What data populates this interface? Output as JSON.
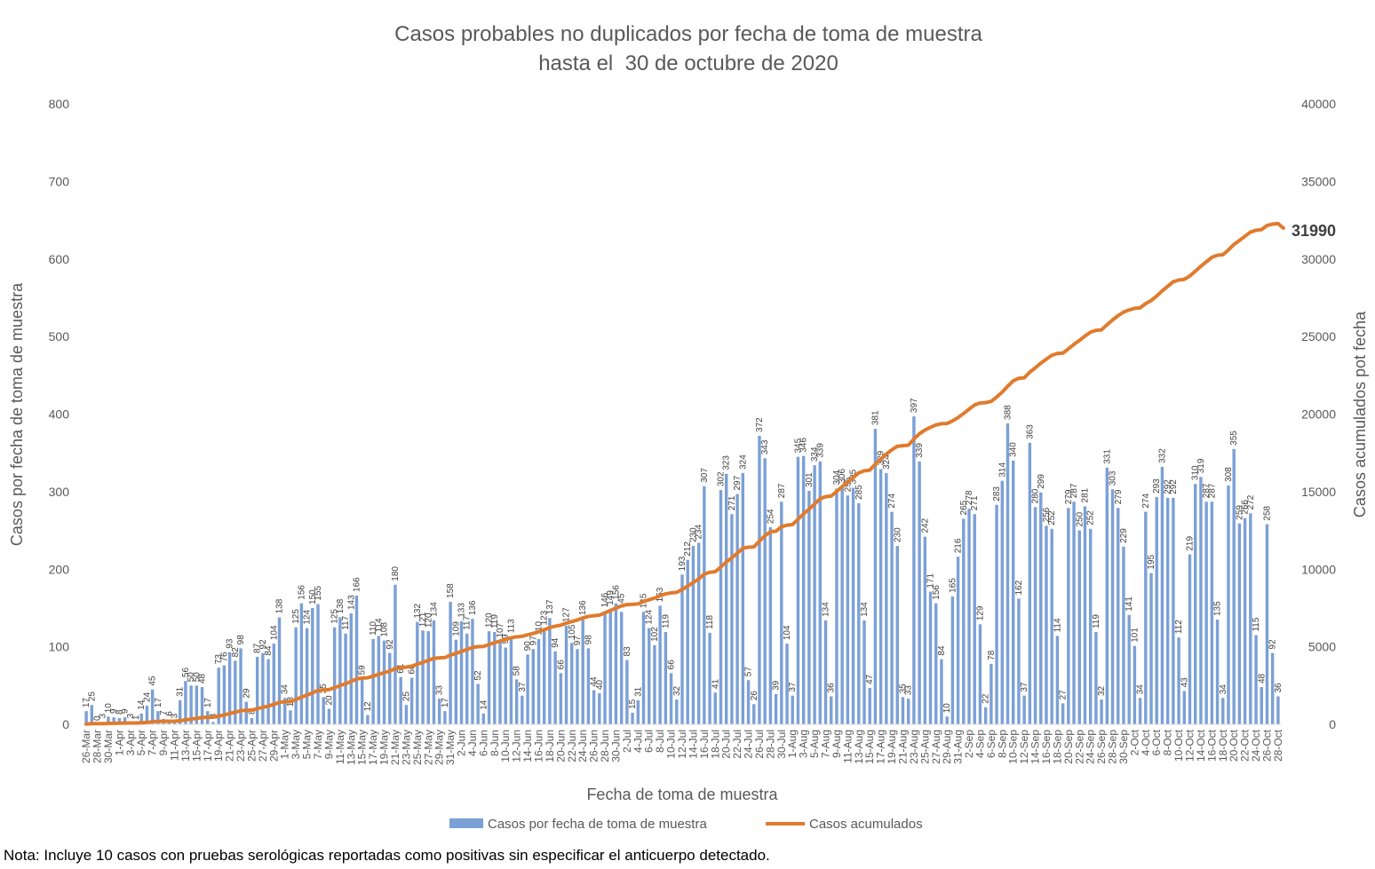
{
  "chart_data": {
    "type": "bar+line",
    "title": "Casos probables no duplicados por fecha de toma de muestra",
    "subtitle": "hasta el  30 de octubre de 2020",
    "xlabel": "Fecha de toma de muestra",
    "ylabel_left": "Casos por fecha de toma de muestra",
    "ylabel_right": "Casos acumulados pot fecha",
    "ylim_left": [
      0,
      800
    ],
    "ylim_right": [
      0,
      40000
    ],
    "yticks_left": [
      0,
      100,
      200,
      300,
      400,
      500,
      600,
      700,
      800
    ],
    "yticks_right": [
      0,
      5000,
      10000,
      15000,
      20000,
      25000,
      30000,
      35000,
      40000
    ],
    "start_date": "26-Mar",
    "x_tick_labels": [
      "26-Mar",
      "28-Mar",
      "30-Mar",
      "1-Apr",
      "3-Apr",
      "5-Apr",
      "7-Apr",
      "9-Apr",
      "11-Apr",
      "13-Apr",
      "15-Apr",
      "17-Apr",
      "19-Apr",
      "21-Apr",
      "23-Apr",
      "25-Apr",
      "27-Apr",
      "29-Apr",
      "1-May",
      "3-May",
      "5-May",
      "7-May",
      "9-May",
      "11-May",
      "13-May",
      "15-May",
      "17-May",
      "19-May",
      "21-May",
      "23-May",
      "25-May",
      "27-May",
      "29-May",
      "31-May",
      "2-Jun",
      "4-Jun",
      "6-Jun",
      "8-Jun",
      "10-Jun",
      "12-Jun",
      "14-Jun",
      "16-Jun",
      "18-Jun",
      "20-Jun",
      "22-Jun",
      "24-Jun",
      "26-Jun",
      "28-Jun",
      "30-Jun",
      "2-Jul",
      "4-Jul",
      "6-Jul",
      "8-Jul",
      "10-Jul",
      "12-Jul",
      "14-Jul",
      "16-Jul",
      "18-Jul",
      "20-Jul",
      "22-Jul",
      "24-Jul",
      "26-Jul",
      "28-Jul",
      "30-Jul",
      "1-Aug",
      "3-Aug",
      "5-Aug",
      "7-Aug",
      "9-Aug",
      "11-Aug",
      "13-Aug",
      "15-Aug",
      "17-Aug",
      "19-Aug",
      "21-Aug",
      "23-Aug",
      "25-Aug",
      "27-Aug",
      "29-Aug",
      "31-Aug",
      "2-Sep",
      "4-Sep",
      "6-Sep",
      "8-Sep",
      "10-Sep",
      "12-Sep",
      "14-Sep",
      "16-Sep",
      "18-Sep",
      "20-Sep",
      "22-Sep",
      "24-Sep",
      "26-Sep",
      "28-Sep",
      "30-Sep",
      "2-Oct",
      "4-Oct",
      "6-Oct",
      "8-Oct",
      "10-Oct",
      "12-Oct",
      "14-Oct",
      "16-Oct",
      "18-Oct",
      "20-Oct",
      "22-Oct",
      "24-Oct",
      "26-Oct",
      "28-Oct"
    ],
    "series": [
      {
        "name": "Casos por fecha de toma de muestra",
        "type": "bar",
        "color": "#7ba0d6",
        "values": [
          17,
          25,
          0,
          3,
          10,
          9,
          8,
          9,
          3,
          1,
          14,
          24,
          45,
          17,
          7,
          6,
          3,
          31,
          56,
          50,
          50,
          48,
          17,
          3,
          73,
          76,
          93,
          82,
          98,
          29,
          8,
          87,
          92,
          84,
          104,
          138,
          34,
          18,
          125,
          156,
          124,
          150,
          155,
          35,
          20,
          125,
          138,
          117,
          143,
          166,
          59,
          12,
          110,
          114,
          108,
          92,
          180,
          61,
          25,
          60,
          132,
          121,
          120,
          134,
          33,
          17,
          158,
          109,
          133,
          117,
          136,
          52,
          14,
          120,
          119,
          107,
          99,
          113,
          58,
          37,
          90,
          97,
          110,
          123,
          137,
          94,
          66,
          127,
          105,
          97,
          136,
          98,
          44,
          40,
          146,
          149,
          156,
          145,
          83,
          15,
          31,
          145,
          124,
          102,
          153,
          119,
          66,
          32,
          193,
          212,
          230,
          234,
          307,
          118,
          41,
          302,
          323,
          271,
          297,
          324,
          57,
          26,
          372,
          343,
          254,
          39,
          287,
          104,
          37,
          345,
          346,
          301,
          334,
          339,
          134,
          36,
          304,
          306,
          295,
          305,
          285,
          134,
          47,
          381,
          329,
          324,
          274,
          230,
          35,
          33,
          397,
          339,
          242,
          171,
          156,
          84,
          10,
          165,
          216,
          265,
          278,
          271,
          129,
          22,
          78,
          283,
          314,
          388,
          340,
          162,
          37,
          363,
          280,
          299,
          256,
          252,
          114,
          27,
          279,
          287,
          250,
          281,
          252,
          119,
          32,
          331,
          303,
          279,
          229,
          141,
          101,
          34,
          274,
          195,
          293,
          332,
          292,
          292,
          112,
          43,
          219,
          310,
          319,
          287,
          287,
          135,
          34,
          308,
          355,
          259,
          266,
          272,
          115,
          48,
          258,
          92,
          36
        ]
      },
      {
        "name": "Casos acumulados",
        "type": "line",
        "color": "#e07b2d",
        "final_value": 31990,
        "final_label": "31990"
      }
    ],
    "legend": "bottom",
    "grid": false
  },
  "note": "Nota: Incluye 10 casos con pruebas serológicas reportadas como positivas sin especificar el anticuerpo detectado."
}
